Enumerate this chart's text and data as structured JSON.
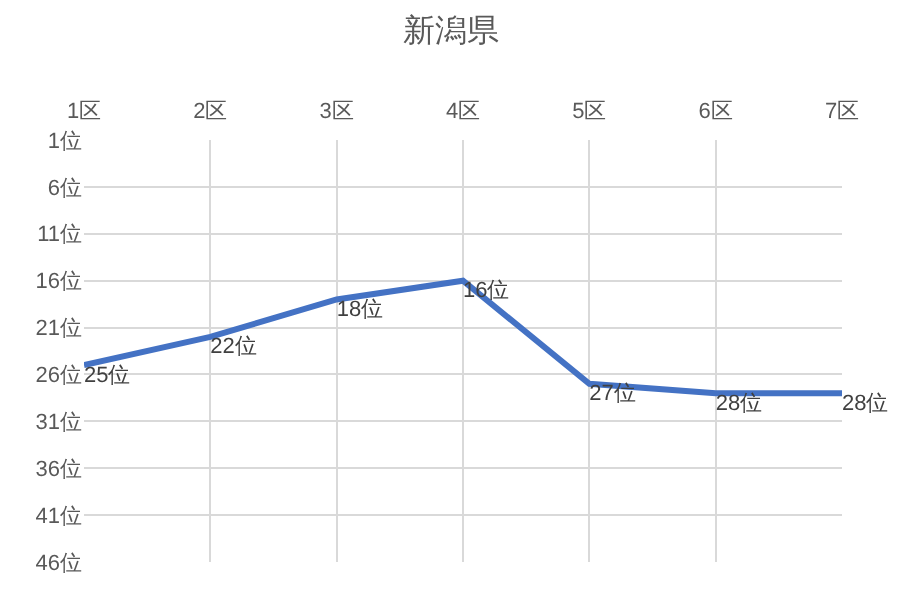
{
  "chart_data": {
    "type": "line",
    "title": "新潟県",
    "categories": [
      "1区",
      "2区",
      "3区",
      "4区",
      "5区",
      "6区",
      "7区"
    ],
    "series": [
      {
        "color": "#4472c4",
        "values": [
          25,
          22,
          18,
          16,
          27,
          28,
          28
        ],
        "value_labels": [
          "25位",
          "22位",
          "18位",
          "16位",
          "27位",
          "28位",
          "28位"
        ]
      }
    ],
    "ylim": [
      46,
      1
    ],
    "yticks": [
      {
        "value": 1,
        "label": "1位"
      },
      {
        "value": 6,
        "label": "6位"
      },
      {
        "value": 11,
        "label": "11位"
      },
      {
        "value": 16,
        "label": "16位"
      },
      {
        "value": 21,
        "label": "21位"
      },
      {
        "value": 26,
        "label": "26位"
      },
      {
        "value": 31,
        "label": "31位"
      },
      {
        "value": 36,
        "label": "36位"
      },
      {
        "value": 41,
        "label": "41位"
      },
      {
        "value": 46,
        "label": "46位"
      }
    ],
    "grid": true,
    "marker": "none",
    "line_style": "solid"
  }
}
